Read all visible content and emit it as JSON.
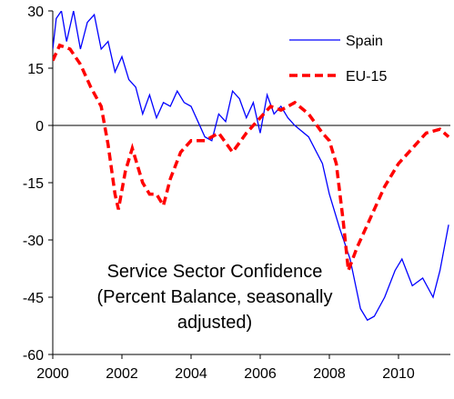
{
  "chart_data": {
    "type": "line",
    "title": [
      "Service Sector Confidence",
      "(Percent Balance, seasonally",
      "adjusted)"
    ],
    "xlim": [
      2000,
      2011.5
    ],
    "xticks": [
      2000,
      2002,
      2004,
      2006,
      2008,
      2010
    ],
    "ylim": [
      -60,
      30
    ],
    "yticks": [
      -60,
      -45,
      -30,
      -15,
      0,
      15,
      30
    ],
    "legend": "upper right",
    "series": [
      {
        "name": "Spain",
        "color": "#0000ff",
        "style": "solid",
        "x": [
          2000,
          2000.1,
          2000.25,
          2000.4,
          2000.6,
          2000.8,
          2001,
          2001.2,
          2001.4,
          2001.6,
          2001.8,
          2002,
          2002.2,
          2002.4,
          2002.6,
          2002.8,
          2003,
          2003.2,
          2003.4,
          2003.6,
          2003.8,
          2004,
          2004.2,
          2004.4,
          2004.6,
          2004.8,
          2005,
          2005.2,
          2005.4,
          2005.6,
          2005.8,
          2006,
          2006.2,
          2006.4,
          2006.6,
          2006.8,
          2007,
          2007.4,
          2007.8,
          2008,
          2008.3,
          2008.6,
          2008.9,
          2009.1,
          2009.3,
          2009.6,
          2009.9,
          2010.1,
          2010.4,
          2010.7,
          2011,
          2011.2,
          2011.45
        ],
        "values": [
          20,
          28,
          30,
          22,
          30,
          20,
          27,
          29,
          20,
          22,
          14,
          18,
          12,
          10,
          3,
          8,
          2,
          6,
          5,
          9,
          6,
          5,
          1,
          -3,
          -4,
          3,
          1,
          9,
          7,
          2,
          6,
          -2,
          8,
          3,
          5,
          2,
          0,
          -3,
          -10,
          -18,
          -27,
          -35,
          -48,
          -51,
          -50,
          -45,
          -38,
          -35,
          -42,
          -40,
          -45,
          -38,
          -26
        ]
      },
      {
        "name": "EU-15",
        "color": "#ff0000",
        "style": "dashed",
        "x": [
          2000,
          2000.2,
          2000.5,
          2000.8,
          2001.1,
          2001.4,
          2001.6,
          2001.8,
          2001.9,
          2002.1,
          2002.3,
          2002.6,
          2002.8,
          2003,
          2003.2,
          2003.4,
          2003.7,
          2004,
          2004.4,
          2004.8,
          2005.2,
          2005.6,
          2006,
          2006.3,
          2006.6,
          2007,
          2007.4,
          2007.8,
          2008,
          2008.2,
          2008.4,
          2008.55,
          2008.8,
          2009.2,
          2009.6,
          2010,
          2010.4,
          2010.8,
          2011.2,
          2011.45
        ],
        "values": [
          17,
          21,
          20,
          16,
          10,
          5,
          -5,
          -18,
          -22,
          -12,
          -6,
          -15,
          -18,
          -18,
          -21,
          -14,
          -7,
          -4,
          -4,
          -2,
          -7,
          -2,
          2,
          5,
          4,
          6,
          3,
          -2,
          -4,
          -10,
          -25,
          -38,
          -32,
          -24,
          -16,
          -10,
          -6,
          -2,
          -1,
          -3
        ]
      }
    ]
  }
}
